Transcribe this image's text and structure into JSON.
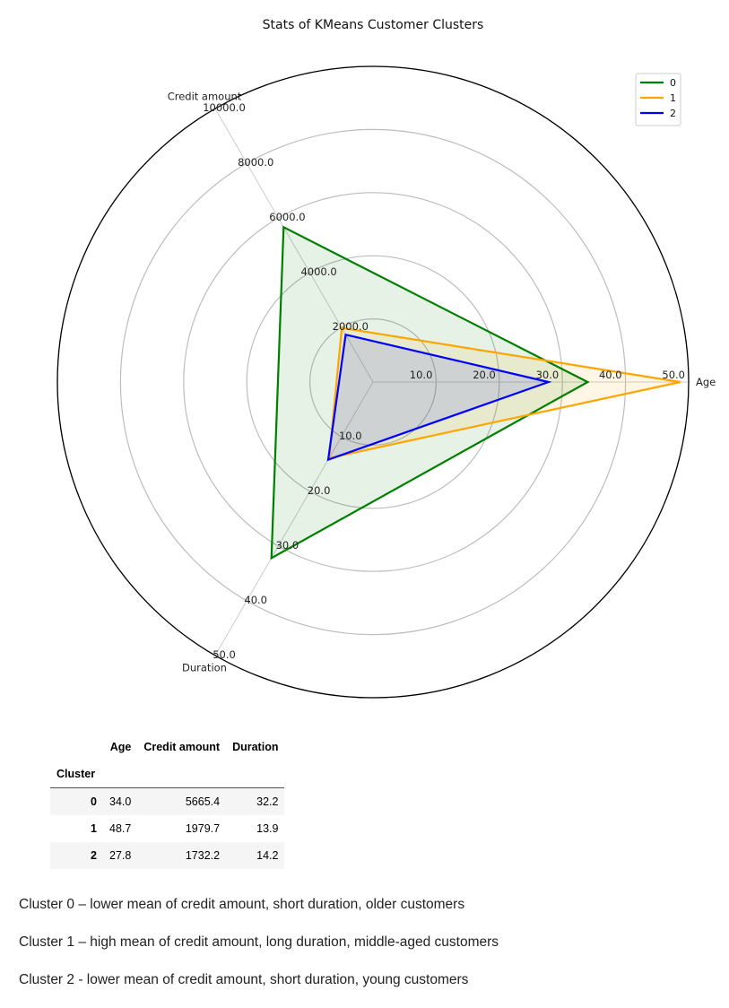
{
  "chart_data": {
    "type": "radar",
    "title": "Stats of KMeans Customer Clusters",
    "axes": [
      {
        "name": "Age",
        "max": 50,
        "ticks": [
          "10.0",
          "20.0",
          "30.0",
          "40.0",
          "50.0"
        ]
      },
      {
        "name": "Credit amount",
        "max": 10000,
        "ticks": [
          "2000.0",
          "4000.0",
          "6000.0",
          "8000.0",
          "10000.0"
        ]
      },
      {
        "name": "Duration",
        "max": 50,
        "ticks": [
          "10.0",
          "20.0",
          "30.0",
          "40.0",
          "50.0"
        ]
      }
    ],
    "series": [
      {
        "name": "0",
        "color": "#008000",
        "values": [
          34.0,
          5665.4,
          32.2
        ]
      },
      {
        "name": "1",
        "color": "#FFA500",
        "values": [
          48.7,
          1979.7,
          13.9
        ]
      },
      {
        "name": "2",
        "color": "#0000FF",
        "values": [
          27.8,
          1732.2,
          14.2
        ]
      }
    ],
    "grid": true,
    "legend": "top-right"
  },
  "table": {
    "columns": [
      "Age",
      "Credit amount",
      "Duration"
    ],
    "index_name": "Cluster",
    "rows": [
      {
        "index": "0",
        "age": "34.0",
        "credit": "5665.4",
        "duration": "32.2"
      },
      {
        "index": "1",
        "age": "48.7",
        "credit": "1979.7",
        "duration": "13.9"
      },
      {
        "index": "2",
        "age": "27.8",
        "credit": "1732.2",
        "duration": "14.2"
      }
    ]
  },
  "notes": [
    "Cluster 0 – lower mean of credit amount, short duration, older customers",
    "Cluster 1 – high mean of credit amount, long duration, middle-aged customers",
    "Cluster 2 - lower mean of credit amount, short duration, young customers"
  ]
}
